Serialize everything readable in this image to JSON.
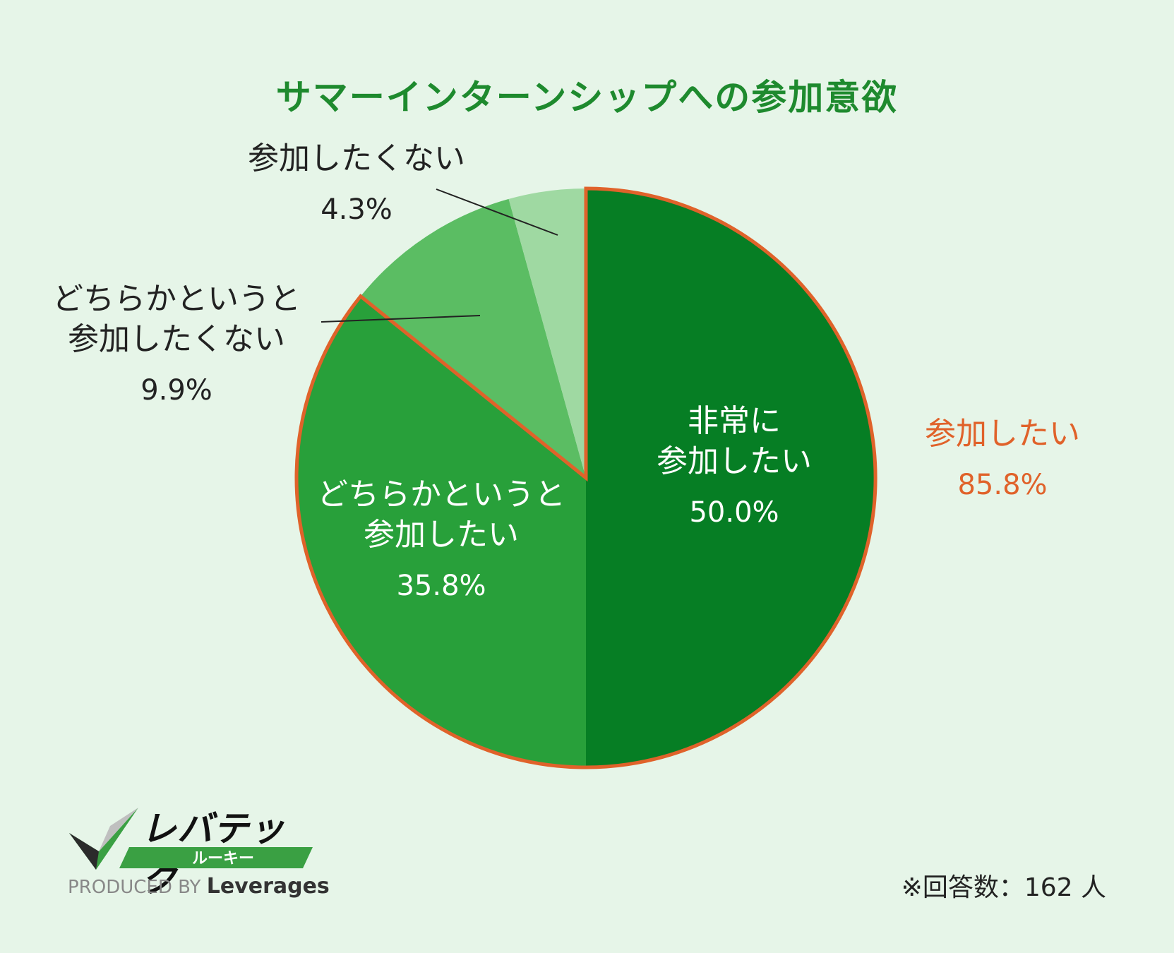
{
  "chart_data": {
    "type": "pie",
    "title": "サマーインターンシップへの参加意欲",
    "slices": [
      {
        "label_lines": [
          "非常に",
          "参加したい"
        ],
        "percent_label": "50.0%",
        "value": 50.0,
        "color": "#067e24"
      },
      {
        "label_lines": [
          "どちらかというと",
          "参加したい"
        ],
        "percent_label": "35.8%",
        "value": 35.8,
        "color": "#28a03a"
      },
      {
        "label_lines": [
          "どちらかというと",
          "参加したくない"
        ],
        "percent_label": "9.9%",
        "value": 9.9,
        "color": "#5bbd63"
      },
      {
        "label_lines": [
          "参加したくない"
        ],
        "percent_label": "4.3%",
        "value": 4.3,
        "color": "#9fd9a2"
      }
    ],
    "group": {
      "label": "参加したい",
      "percent_label": "85.8%",
      "value": 85.8,
      "outline_color": "#e0622a"
    },
    "note": "※回答数：162 人"
  },
  "logo": {
    "name": "レバテック",
    "sub": "ルーキー",
    "produced_by": "PRODUCED BY",
    "brand": "Leverages"
  }
}
